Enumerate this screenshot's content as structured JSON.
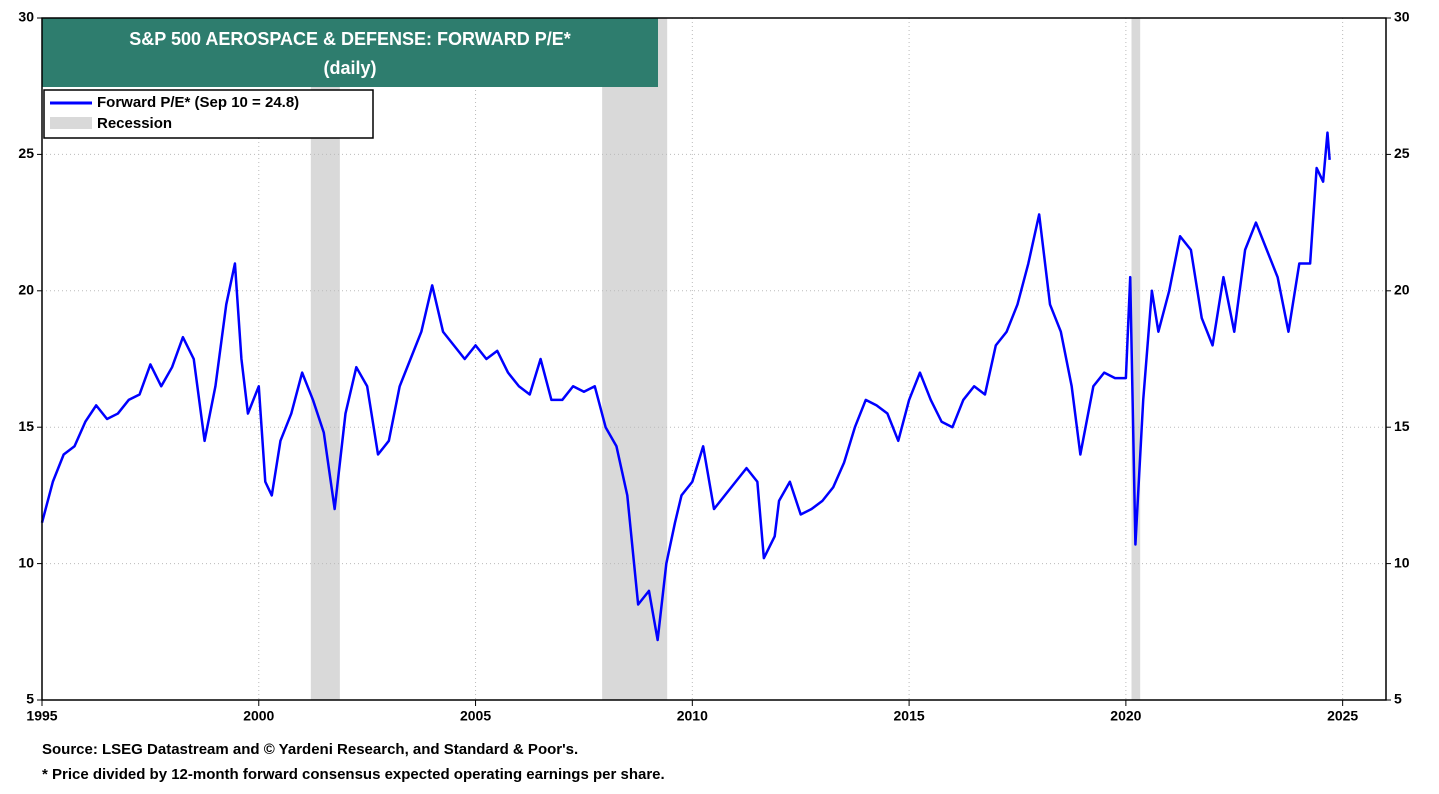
{
  "chart_data": {
    "type": "line",
    "title": "S&P 500 AEROSPACE & DEFENSE: FORWARD P/E*",
    "subtitle": "(daily)",
    "x": [
      1995.0,
      1995.25,
      1995.5,
      1995.75,
      1996.0,
      1996.25,
      1996.5,
      1996.75,
      1997.0,
      1997.25,
      1997.5,
      1997.75,
      1998.0,
      1998.25,
      1998.5,
      1998.75,
      1999.0,
      1999.25,
      1999.45,
      1999.6,
      1999.75,
      2000.0,
      2000.15,
      2000.3,
      2000.5,
      2000.75,
      2001.0,
      2001.25,
      2001.5,
      2001.75,
      2002.0,
      2002.25,
      2002.5,
      2002.75,
      2003.0,
      2003.25,
      2003.5,
      2003.75,
      2004.0,
      2004.25,
      2004.5,
      2004.75,
      2005.0,
      2005.25,
      2005.5,
      2005.75,
      2006.0,
      2006.25,
      2006.5,
      2006.75,
      2007.0,
      2007.25,
      2007.5,
      2007.75,
      2008.0,
      2008.25,
      2008.5,
      2008.75,
      2009.0,
      2009.2,
      2009.4,
      2009.6,
      2009.75,
      2010.0,
      2010.25,
      2010.5,
      2010.75,
      2011.0,
      2011.25,
      2011.5,
      2011.65,
      2011.9,
      2012.0,
      2012.25,
      2012.5,
      2012.75,
      2013.0,
      2013.25,
      2013.5,
      2013.75,
      2014.0,
      2014.25,
      2014.5,
      2014.75,
      2015.0,
      2015.25,
      2015.5,
      2015.75,
      2016.0,
      2016.25,
      2016.5,
      2016.75,
      2017.0,
      2017.25,
      2017.5,
      2017.75,
      2018.0,
      2018.25,
      2018.5,
      2018.75,
      2018.95,
      2019.25,
      2019.5,
      2019.75,
      2020.0,
      2020.1,
      2020.22,
      2020.4,
      2020.6,
      2020.75,
      2021.0,
      2021.25,
      2021.5,
      2021.75,
      2022.0,
      2022.25,
      2022.5,
      2022.75,
      2023.0,
      2023.25,
      2023.5,
      2023.75,
      2024.0,
      2024.25,
      2024.4,
      2024.55,
      2024.65,
      2024.7
    ],
    "series": [
      {
        "name": "Forward P/E* (Sep 10 = 24.8)",
        "color": "#0000ff",
        "values": [
          11.5,
          13,
          14,
          14.3,
          15.2,
          15.8,
          15.3,
          15.5,
          16.0,
          16.2,
          17.3,
          16.5,
          17.2,
          18.3,
          17.5,
          14.5,
          16.5,
          19.5,
          21.0,
          17.5,
          15.5,
          16.5,
          13,
          12.5,
          14.5,
          15.5,
          17.0,
          16.0,
          14.8,
          12.0,
          15.5,
          17.2,
          16.5,
          14.0,
          14.5,
          16.5,
          17.5,
          18.5,
          20.2,
          18.5,
          18.0,
          17.5,
          18.0,
          17.5,
          17.8,
          17.0,
          16.5,
          16.2,
          17.5,
          16.0,
          16.0,
          16.5,
          16.3,
          16.5,
          15.0,
          14.3,
          12.5,
          8.5,
          9.0,
          7.2,
          10.0,
          11.5,
          12.5,
          13.0,
          14.3,
          12.0,
          12.5,
          13.0,
          13.5,
          13.0,
          10.2,
          11.0,
          12.3,
          13.0,
          11.8,
          12.0,
          12.3,
          12.8,
          13.7,
          15.0,
          16.0,
          15.8,
          15.5,
          14.5,
          16.0,
          17.0,
          16.0,
          15.2,
          15.0,
          16.0,
          16.5,
          16.2,
          18.0,
          18.5,
          19.5,
          21.0,
          22.8,
          19.5,
          18.5,
          16.5,
          14.0,
          16.5,
          17.0,
          16.8,
          16.8,
          20.5,
          10.7,
          16.0,
          20.0,
          18.5,
          20.0,
          22.0,
          21.5,
          19.0,
          18.0,
          20.5,
          18.5,
          21.5,
          22.5,
          21.5,
          20.5,
          18.5,
          21.0,
          21.0,
          24.5,
          24.0,
          25.8,
          24.8
        ]
      }
    ],
    "recession": {
      "name": "Recession",
      "color": "#d9d9d9",
      "periods": [
        [
          2001.2,
          2001.87
        ],
        [
          2007.92,
          2009.42
        ],
        [
          2020.13,
          2020.33
        ]
      ]
    },
    "xlim": [
      1995,
      2026
    ],
    "xticks": [
      1995,
      2000,
      2005,
      2010,
      2015,
      2020,
      2025
    ],
    "ylim": [
      5,
      30
    ],
    "yticks": [
      5,
      10,
      15,
      20,
      25,
      30
    ],
    "y2lim": [
      5,
      30
    ],
    "y2ticks": [
      5,
      10,
      15,
      20,
      25,
      30
    ],
    "grid": true,
    "source": "Source: LSEG Datastream and © Yardeni Research, and Standard & Poor's.",
    "note": "* Price divided by 12-month forward consensus expected operating earnings per share."
  }
}
